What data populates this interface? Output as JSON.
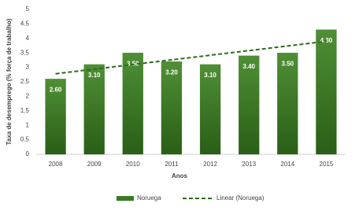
{
  "chart_data": {
    "type": "bar",
    "x_label": "Anos",
    "y_label": "Taxa de desemprego (% força de trabalho)",
    "categories": [
      "2008",
      "2009",
      "2010",
      "2011",
      "2012",
      "2013",
      "2014",
      "2015"
    ],
    "series": [
      {
        "name": "Noruega",
        "type": "bar",
        "color": "#3a7a22",
        "values": [
          2.6,
          3.1,
          3.5,
          3.2,
          3.1,
          3.4,
          3.5,
          4.3
        ],
        "value_labels": [
          "2.60",
          "3.10",
          "3.50",
          "3.20",
          "3.10",
          "3.40",
          "3.50",
          "4.30"
        ]
      },
      {
        "name": "Linear (Noruega)",
        "type": "line",
        "line_style": "dashed",
        "color": "#2e6b1a",
        "values": [
          2.78,
          2.94,
          3.1,
          3.26,
          3.42,
          3.58,
          3.74,
          3.9
        ]
      }
    ],
    "ylim": [
      0,
      5
    ],
    "yticks": [
      0,
      0.5,
      1,
      1.5,
      2,
      2.5,
      3,
      3.5,
      4,
      4.5,
      5
    ],
    "grid": false,
    "legend": "bottom"
  }
}
